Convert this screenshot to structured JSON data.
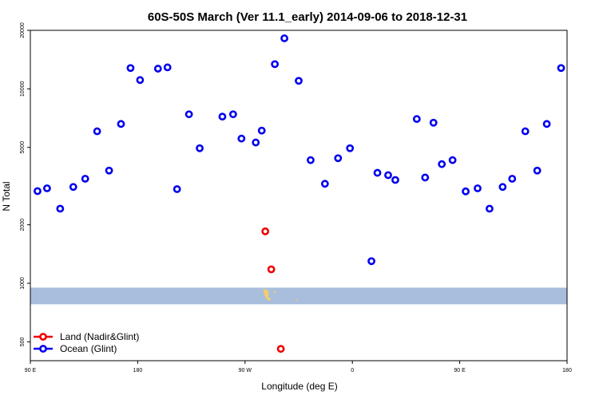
{
  "chart_data": {
    "type": "scatter",
    "title": "60S-50S March (Ver 11.1_early)   2014-09-06 to 2018-12-31",
    "xlabel": "Longitude (deg E)",
    "ylabel": "N Total",
    "y_scale": "log",
    "xlim": [
      90,
      540
    ],
    "ylim": [
      400,
      20000
    ],
    "x_ticks": [
      {
        "value": 90,
        "label": "90 E"
      },
      {
        "value": 180,
        "label": "180"
      },
      {
        "value": 270,
        "label": "90 W"
      },
      {
        "value": 360,
        "label": "0"
      },
      {
        "value": 450,
        "label": "90 E"
      },
      {
        "value": 540,
        "label": "180"
      }
    ],
    "y_ticks": [
      500,
      1000,
      2000,
      5000,
      10000,
      20000
    ],
    "grid": false,
    "legend_position": "bottom-left",
    "band": {
      "y_min": 780,
      "y_max": 950,
      "color": "#a9bedc"
    },
    "land_features_color": "#f2cf6a",
    "series": [
      {
        "name": "Ocean (Glint)",
        "color": "#0000ee",
        "x": [
          96,
          104,
          115,
          126,
          136,
          146,
          156,
          166,
          174,
          182,
          197,
          205,
          213,
          223,
          232,
          251,
          260,
          267,
          279,
          284,
          295,
          303,
          315,
          325,
          337,
          348,
          358,
          376,
          381,
          390,
          396,
          414,
          421,
          428,
          435,
          444,
          455,
          465,
          475,
          486,
          494,
          505,
          515,
          523,
          535
        ],
        "y": [
          2980,
          3080,
          2420,
          3130,
          3450,
          6050,
          3800,
          6600,
          12800,
          11100,
          12700,
          12900,
          3050,
          7400,
          4950,
          7200,
          7400,
          5550,
          5300,
          6100,
          13400,
          18200,
          11000,
          4300,
          3250,
          4400,
          4950,
          1300,
          3700,
          3600,
          3400,
          7000,
          3500,
          6700,
          4100,
          4300,
          2970,
          3080,
          2420,
          3130,
          3450,
          6050,
          3800,
          6600,
          12800
        ]
      },
      {
        "name": "Land (Nadir&Glint)",
        "color": "#ee0000",
        "x": [
          287,
          292,
          300
        ],
        "y": [
          1850,
          1180,
          460
        ]
      }
    ]
  }
}
